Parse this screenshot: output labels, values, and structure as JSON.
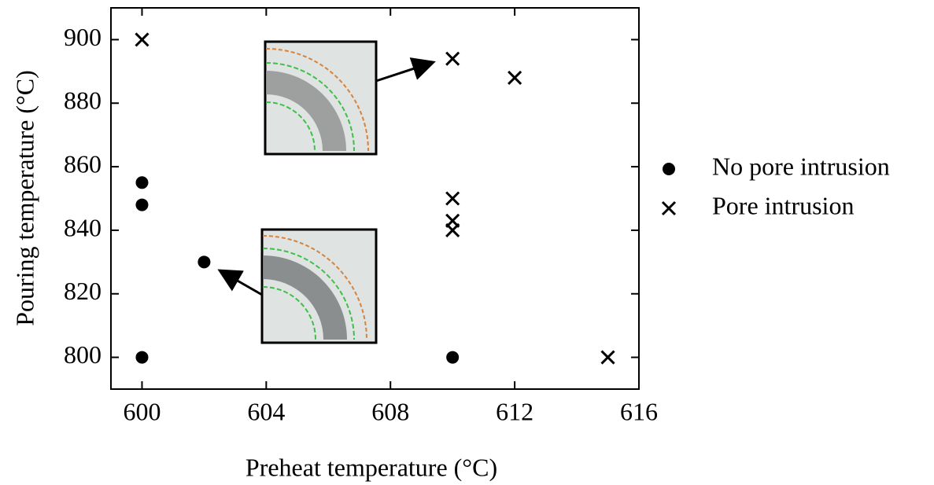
{
  "chart_data": {
    "type": "scatter",
    "x_label": "Preheat temperature (°C)",
    "y_label": "Pouring temperature (°C)",
    "xlim": [
      599,
      616
    ],
    "xticks": [
      600,
      604,
      608,
      612,
      616
    ],
    "ylim": [
      790,
      910
    ],
    "yticks": [
      800,
      820,
      840,
      860,
      880,
      900
    ],
    "legend": "right",
    "series": [
      {
        "name": "No pore intrusion",
        "marker": "circle",
        "color": "#000000",
        "x": [
          600,
          600,
          602,
          600,
          610
        ],
        "y": [
          855,
          848,
          830,
          800,
          800
        ]
      },
      {
        "name": "Pore intrusion",
        "marker": "x",
        "color": "#000000",
        "x": [
          600,
          610,
          612,
          610,
          610,
          610,
          615
        ],
        "y": [
          900,
          894,
          888,
          850,
          843,
          840,
          800
        ]
      }
    ]
  }
}
